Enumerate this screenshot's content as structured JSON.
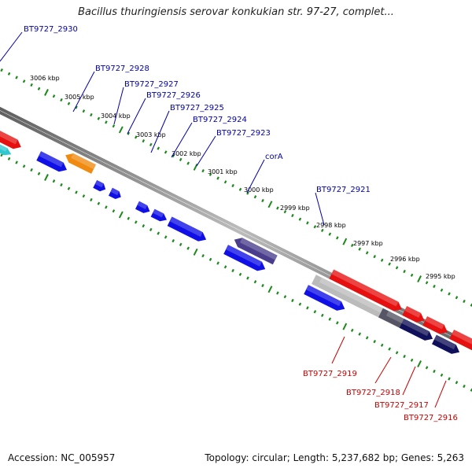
{
  "title": "Bacillus thuringiensis serovar konkukian str. 97-27, complet...",
  "footer": {
    "accession": "Accession: NC_005957",
    "topology": "Topology: circular; Length: 5,237,682 bp; Genes: 5,263"
  },
  "colors": {
    "forward_gene": "#1010e6",
    "reverse_gene": "#e61010",
    "highlight_gene": "#4a3d8c",
    "orange_gene": "#f08a10",
    "dark_gene": "#10105a",
    "gray_gene": "#bbbbbb",
    "forward_label": "#0000aa",
    "reverse_label": "#cc0000",
    "tick": "#1a8a1a",
    "backbone": "#777777"
  },
  "ticks": [
    "3006 kbp",
    "3005 kbp",
    "3004 kbp",
    "3003 kbp",
    "3002 kbp",
    "3001 kbp",
    "3000 kbp",
    "2999 kbp",
    "2998 kbp",
    "2997 kbp",
    "2996 kbp",
    "2995 kbp"
  ],
  "forward_labels": [
    "BT9727_2930",
    "BT9727_2928",
    "BT9727_2927",
    "BT9727_2926",
    "BT9727_2925",
    "BT9727_2924",
    "BT9727_2923",
    "corA",
    "BT9727_2921"
  ],
  "reverse_labels": [
    "BT9727_2919",
    "BT9727_2918",
    "BT9727_2917",
    "BT9727_2916"
  ]
}
